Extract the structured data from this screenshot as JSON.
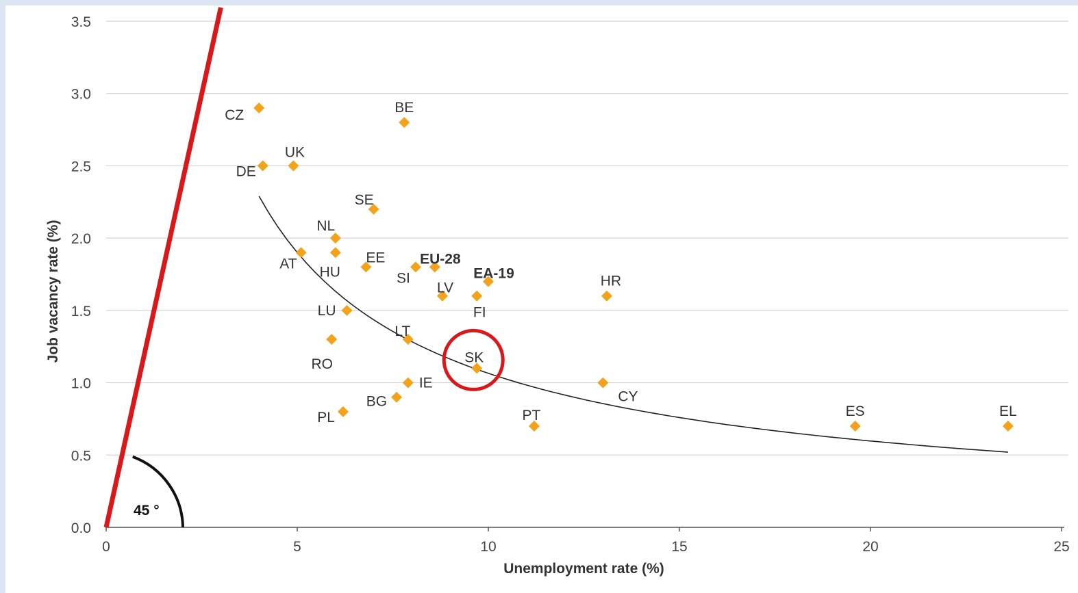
{
  "chart_data": {
    "type": "scatter",
    "xlabel": "Unemployment  rate (%)",
    "ylabel": "Job vacancy rate (%)",
    "xlim": [
      0,
      25
    ],
    "ylim": [
      0,
      3.5
    ],
    "xticks": [
      "0",
      "5",
      "10",
      "15",
      "20",
      "25"
    ],
    "yticks": [
      "0.0",
      "0.5",
      "1.0",
      "1.5",
      "2.0",
      "2.5",
      "3.0",
      "3.5"
    ],
    "grid": "horizontal",
    "marker_color": "#f2a31b",
    "points": [
      {
        "label": "CZ",
        "x": 4.0,
        "y": 2.9
      },
      {
        "label": "BE",
        "x": 7.8,
        "y": 2.8
      },
      {
        "label": "DE",
        "x": 4.1,
        "y": 2.5
      },
      {
        "label": "UK",
        "x": 4.9,
        "y": 2.5
      },
      {
        "label": "SE",
        "x": 7.0,
        "y": 2.2
      },
      {
        "label": "NL",
        "x": 6.0,
        "y": 2.0
      },
      {
        "label": "AT",
        "x": 5.1,
        "y": 1.9
      },
      {
        "label": "HU",
        "x": 6.0,
        "y": 1.9
      },
      {
        "label": "EE",
        "x": 6.8,
        "y": 1.8
      },
      {
        "label": "EU-28",
        "x": 8.6,
        "y": 1.8,
        "bold": true
      },
      {
        "label": "SI",
        "x": 8.1,
        "y": 1.8
      },
      {
        "label": "EA-19",
        "x": 10.0,
        "y": 1.7,
        "bold": true
      },
      {
        "label": "LV",
        "x": 8.8,
        "y": 1.6
      },
      {
        "label": "FI",
        "x": 9.7,
        "y": 1.6
      },
      {
        "label": "HR",
        "x": 13.1,
        "y": 1.6
      },
      {
        "label": "LU",
        "x": 6.3,
        "y": 1.5
      },
      {
        "label": "RO",
        "x": 5.9,
        "y": 1.3
      },
      {
        "label": "LT",
        "x": 7.9,
        "y": 1.3
      },
      {
        "label": "SK",
        "x": 9.7,
        "y": 1.1
      },
      {
        "label": "IE",
        "x": 7.9,
        "y": 1.0
      },
      {
        "label": "CY",
        "x": 13.0,
        "y": 1.0
      },
      {
        "label": "BG",
        "x": 7.6,
        "y": 0.9
      },
      {
        "label": "PL",
        "x": 6.2,
        "y": 0.8
      },
      {
        "label": "PT",
        "x": 11.2,
        "y": 0.7
      },
      {
        "label": "ES",
        "x": 19.6,
        "y": 0.7
      },
      {
        "label": "EL",
        "x": 23.6,
        "y": 0.7
      }
    ],
    "trend_line": {
      "type": "power fit",
      "color": "#222222",
      "x_range": [
        4.0,
        23.6
      ],
      "y_range": [
        2.29,
        0.52
      ]
    },
    "reference_line": {
      "color": "#d7191c",
      "from": [
        0,
        0
      ],
      "to": [
        3.0,
        3.5
      ]
    },
    "highlight": {
      "label": "SK",
      "shape": "circle",
      "color": "#d7191c"
    },
    "angle_annotation": {
      "text": "45 °"
    }
  }
}
